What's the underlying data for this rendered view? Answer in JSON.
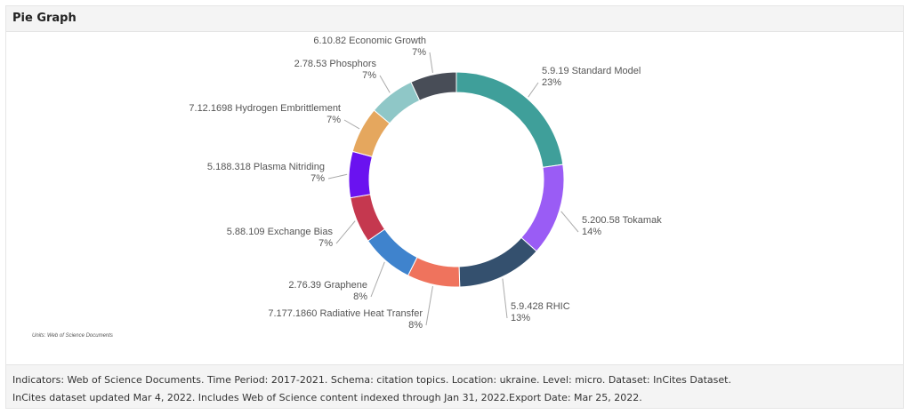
{
  "panel": {
    "title": "Pie Graph",
    "units_note": "Units: Web of Science Documents"
  },
  "footer": {
    "line1": "Indicators: Web of Science Documents. Time Period: 2017-2021. Schema: citation topics. Location: ukraine. Level: micro. Dataset: InCites Dataset.",
    "line2": "InCites dataset updated Mar 4, 2022. Includes Web of Science content indexed through Jan 31, 2022.Export Date: Mar 25, 2022."
  },
  "chart_data": {
    "type": "pie",
    "variant": "donut",
    "title": "",
    "slices": [
      {
        "label": "5.9.19 Standard Model",
        "pct_label": "23%",
        "value": 23,
        "color": "#3f9f9a"
      },
      {
        "label": "5.200.58 Tokamak",
        "pct_label": "14%",
        "value": 14,
        "color": "#9a5cf5"
      },
      {
        "label": "5.9.428 RHIC",
        "pct_label": "13%",
        "value": 13,
        "color": "#34506e"
      },
      {
        "label": "7.177.1860 Radiative Heat Transfer",
        "pct_label": "8%",
        "value": 8,
        "color": "#ef735d"
      },
      {
        "label": "2.76.39 Graphene",
        "pct_label": "8%",
        "value": 8,
        "color": "#3f83cd"
      },
      {
        "label": "5.88.109 Exchange Bias",
        "pct_label": "7%",
        "value": 7,
        "color": "#c5384f"
      },
      {
        "label": "5.188.318 Plasma Nitriding",
        "pct_label": "7%",
        "value": 7,
        "color": "#6a12f0"
      },
      {
        "label": "7.12.1698 Hydrogen Embrittlement",
        "pct_label": "7%",
        "value": 7,
        "color": "#e5a75e"
      },
      {
        "label": "2.78.53 Phosphors",
        "pct_label": "7%",
        "value": 7,
        "color": "#8fc7c7"
      },
      {
        "label": "6.10.82 Economic Growth",
        "pct_label": "7%",
        "value": 7,
        "color": "#484d57"
      }
    ],
    "legend": "none"
  }
}
